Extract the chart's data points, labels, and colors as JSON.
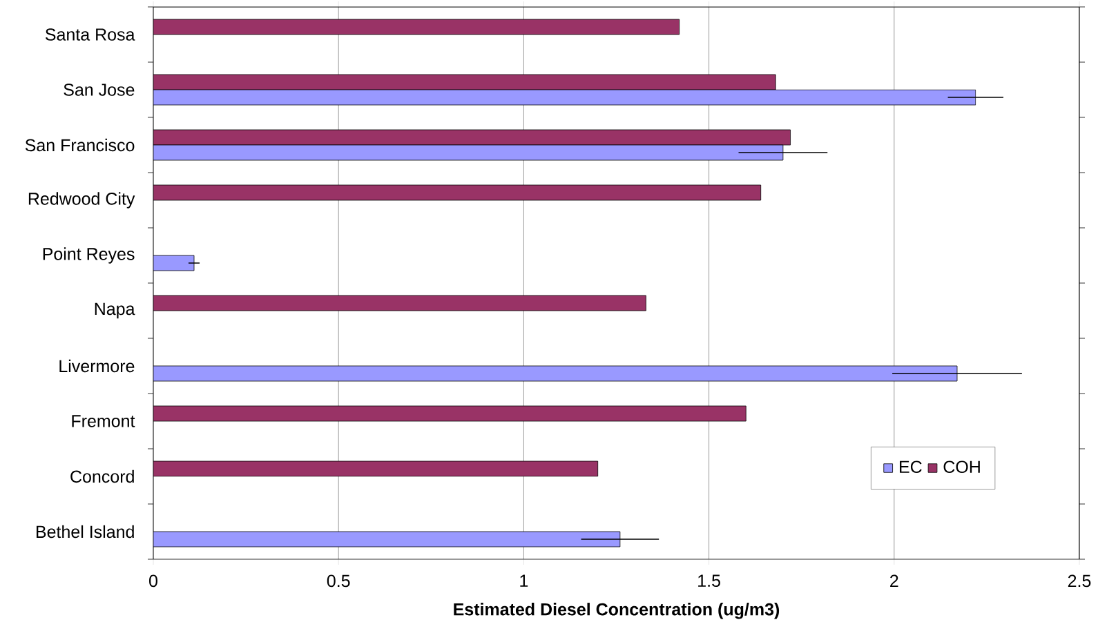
{
  "chart_data": {
    "type": "bar",
    "orientation": "horizontal",
    "xlabel": "Estimated Diesel Concentration (ug/m3)",
    "categories": [
      "Santa Rosa",
      "San Jose",
      "San Francisco",
      "Redwood City",
      "Point Reyes",
      "Napa",
      "Livermore",
      "Fremont",
      "Concord",
      "Bethel Island"
    ],
    "series": [
      {
        "name": "EC",
        "color": "#9999ff",
        "values": [
          null,
          2.22,
          1.7,
          null,
          0.11,
          null,
          2.17,
          null,
          null,
          1.26
        ],
        "errors": [
          null,
          0.075,
          0.12,
          null,
          0.015,
          null,
          0.175,
          null,
          null,
          0.105
        ]
      },
      {
        "name": "COH",
        "color": "#993366",
        "values": [
          1.42,
          1.68,
          1.72,
          1.64,
          null,
          1.33,
          null,
          1.6,
          1.2,
          null
        ]
      }
    ],
    "xlim": [
      0,
      2.5
    ],
    "xticks": [
      0,
      0.5,
      1,
      1.5,
      2,
      2.5
    ],
    "grid": "x",
    "legend": "bottom right"
  }
}
